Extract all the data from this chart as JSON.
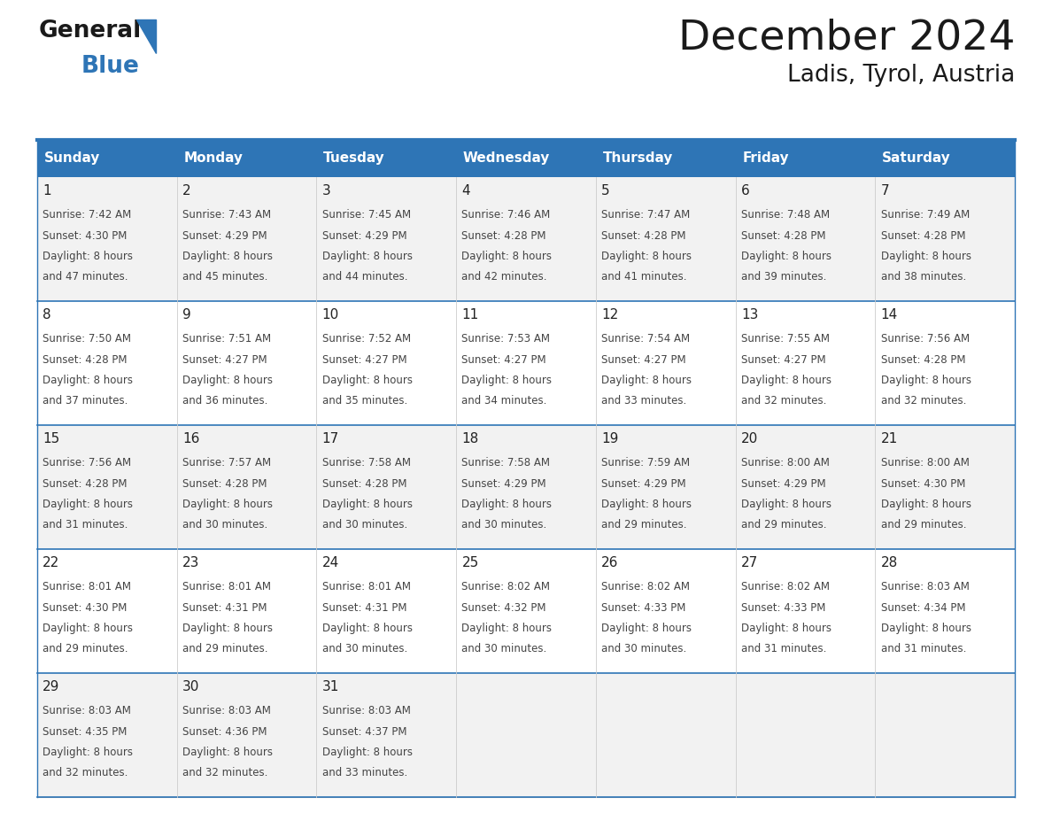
{
  "title": "December 2024",
  "subtitle": "Ladis, Tyrol, Austria",
  "header_color": "#2E75B6",
  "header_text_color": "#FFFFFF",
  "border_color": "#2E75B6",
  "row_colors": [
    "#F2F2F2",
    "#FFFFFF"
  ],
  "text_color": "#444444",
  "day_num_color": "#222222",
  "days_of_week": [
    "Sunday",
    "Monday",
    "Tuesday",
    "Wednesday",
    "Thursday",
    "Friday",
    "Saturday"
  ],
  "weeks": [
    [
      {
        "day": 1,
        "sunrise": "7:42 AM",
        "sunset": "4:30 PM",
        "daylight": "8 hours and 47 minutes."
      },
      {
        "day": 2,
        "sunrise": "7:43 AM",
        "sunset": "4:29 PM",
        "daylight": "8 hours and 45 minutes."
      },
      {
        "day": 3,
        "sunrise": "7:45 AM",
        "sunset": "4:29 PM",
        "daylight": "8 hours and 44 minutes."
      },
      {
        "day": 4,
        "sunrise": "7:46 AM",
        "sunset": "4:28 PM",
        "daylight": "8 hours and 42 minutes."
      },
      {
        "day": 5,
        "sunrise": "7:47 AM",
        "sunset": "4:28 PM",
        "daylight": "8 hours and 41 minutes."
      },
      {
        "day": 6,
        "sunrise": "7:48 AM",
        "sunset": "4:28 PM",
        "daylight": "8 hours and 39 minutes."
      },
      {
        "day": 7,
        "sunrise": "7:49 AM",
        "sunset": "4:28 PM",
        "daylight": "8 hours and 38 minutes."
      }
    ],
    [
      {
        "day": 8,
        "sunrise": "7:50 AM",
        "sunset": "4:28 PM",
        "daylight": "8 hours and 37 minutes."
      },
      {
        "day": 9,
        "sunrise": "7:51 AM",
        "sunset": "4:27 PM",
        "daylight": "8 hours and 36 minutes."
      },
      {
        "day": 10,
        "sunrise": "7:52 AM",
        "sunset": "4:27 PM",
        "daylight": "8 hours and 35 minutes."
      },
      {
        "day": 11,
        "sunrise": "7:53 AM",
        "sunset": "4:27 PM",
        "daylight": "8 hours and 34 minutes."
      },
      {
        "day": 12,
        "sunrise": "7:54 AM",
        "sunset": "4:27 PM",
        "daylight": "8 hours and 33 minutes."
      },
      {
        "day": 13,
        "sunrise": "7:55 AM",
        "sunset": "4:27 PM",
        "daylight": "8 hours and 32 minutes."
      },
      {
        "day": 14,
        "sunrise": "7:56 AM",
        "sunset": "4:28 PM",
        "daylight": "8 hours and 32 minutes."
      }
    ],
    [
      {
        "day": 15,
        "sunrise": "7:56 AM",
        "sunset": "4:28 PM",
        "daylight": "8 hours and 31 minutes."
      },
      {
        "day": 16,
        "sunrise": "7:57 AM",
        "sunset": "4:28 PM",
        "daylight": "8 hours and 30 minutes."
      },
      {
        "day": 17,
        "sunrise": "7:58 AM",
        "sunset": "4:28 PM",
        "daylight": "8 hours and 30 minutes."
      },
      {
        "day": 18,
        "sunrise": "7:58 AM",
        "sunset": "4:29 PM",
        "daylight": "8 hours and 30 minutes."
      },
      {
        "day": 19,
        "sunrise": "7:59 AM",
        "sunset": "4:29 PM",
        "daylight": "8 hours and 29 minutes."
      },
      {
        "day": 20,
        "sunrise": "8:00 AM",
        "sunset": "4:29 PM",
        "daylight": "8 hours and 29 minutes."
      },
      {
        "day": 21,
        "sunrise": "8:00 AM",
        "sunset": "4:30 PM",
        "daylight": "8 hours and 29 minutes."
      }
    ],
    [
      {
        "day": 22,
        "sunrise": "8:01 AM",
        "sunset": "4:30 PM",
        "daylight": "8 hours and 29 minutes."
      },
      {
        "day": 23,
        "sunrise": "8:01 AM",
        "sunset": "4:31 PM",
        "daylight": "8 hours and 29 minutes."
      },
      {
        "day": 24,
        "sunrise": "8:01 AM",
        "sunset": "4:31 PM",
        "daylight": "8 hours and 30 minutes."
      },
      {
        "day": 25,
        "sunrise": "8:02 AM",
        "sunset": "4:32 PM",
        "daylight": "8 hours and 30 minutes."
      },
      {
        "day": 26,
        "sunrise": "8:02 AM",
        "sunset": "4:33 PM",
        "daylight": "8 hours and 30 minutes."
      },
      {
        "day": 27,
        "sunrise": "8:02 AM",
        "sunset": "4:33 PM",
        "daylight": "8 hours and 31 minutes."
      },
      {
        "day": 28,
        "sunrise": "8:03 AM",
        "sunset": "4:34 PM",
        "daylight": "8 hours and 31 minutes."
      }
    ],
    [
      {
        "day": 29,
        "sunrise": "8:03 AM",
        "sunset": "4:35 PM",
        "daylight": "8 hours and 32 minutes."
      },
      {
        "day": 30,
        "sunrise": "8:03 AM",
        "sunset": "4:36 PM",
        "daylight": "8 hours and 32 minutes."
      },
      {
        "day": 31,
        "sunrise": "8:03 AM",
        "sunset": "4:37 PM",
        "daylight": "8 hours and 33 minutes."
      },
      null,
      null,
      null,
      null
    ]
  ],
  "logo_color_general": "#1a1a1a",
  "logo_color_blue": "#2E75B6"
}
